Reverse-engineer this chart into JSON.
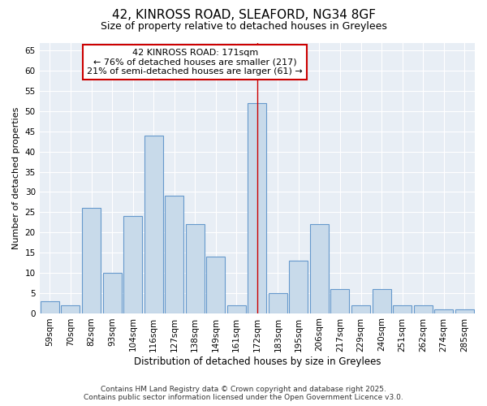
{
  "title_line1": "42, KINROSS ROAD, SLEAFORD, NG34 8GF",
  "title_line2": "Size of property relative to detached houses in Greylees",
  "xlabel": "Distribution of detached houses by size in Greylees",
  "ylabel": "Number of detached properties",
  "categories": [
    "59sqm",
    "70sqm",
    "82sqm",
    "93sqm",
    "104sqm",
    "116sqm",
    "127sqm",
    "138sqm",
    "149sqm",
    "161sqm",
    "172sqm",
    "183sqm",
    "195sqm",
    "206sqm",
    "217sqm",
    "229sqm",
    "240sqm",
    "251sqm",
    "262sqm",
    "274sqm",
    "285sqm"
  ],
  "values": [
    3,
    2,
    26,
    10,
    24,
    44,
    29,
    22,
    14,
    2,
    52,
    5,
    13,
    22,
    6,
    2,
    6,
    2,
    2,
    1,
    1
  ],
  "bar_color": "#c8daea",
  "bar_edge_color": "#6699cc",
  "highlight_index": 10,
  "highlight_line_color": "#cc0000",
  "annotation_line1": "42 KINROSS ROAD: 171sqm",
  "annotation_line2": "← 76% of detached houses are smaller (217)",
  "annotation_line3": "21% of semi-detached houses are larger (61) →",
  "annotation_box_facecolor": "#ffffff",
  "annotation_box_edgecolor": "#cc0000",
  "ylim_max": 67,
  "yticks": [
    0,
    5,
    10,
    15,
    20,
    25,
    30,
    35,
    40,
    45,
    50,
    55,
    60,
    65
  ],
  "background_color": "#ffffff",
  "plot_bg_color": "#e8eef5",
  "grid_color": "#ffffff",
  "footer_line1": "Contains HM Land Registry data © Crown copyright and database right 2025.",
  "footer_line2": "Contains public sector information licensed under the Open Government Licence v3.0.",
  "title1_fontsize": 11,
  "title2_fontsize": 9,
  "tick_fontsize": 7.5,
  "axis_label_fontsize": 8,
  "footer_fontsize": 6.5,
  "annotation_fontsize": 8
}
